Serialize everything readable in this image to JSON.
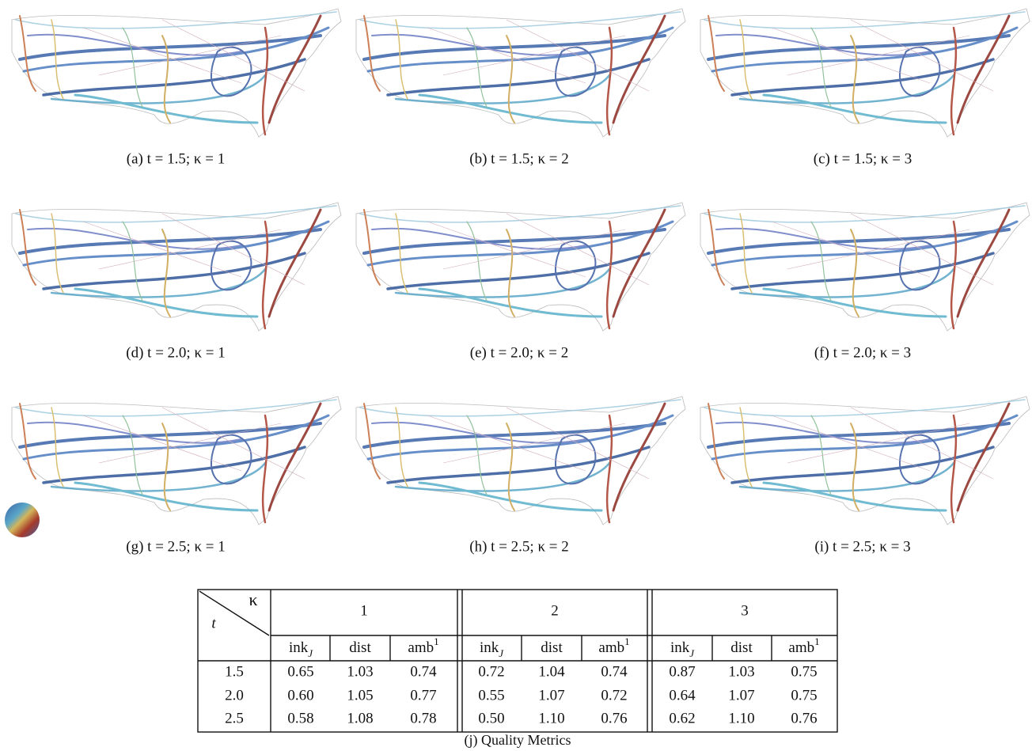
{
  "panels": [
    {
      "caption": "(a) t = 1.5; κ = 1"
    },
    {
      "caption": "(b) t = 1.5; κ = 2"
    },
    {
      "caption": "(c) t = 1.5; κ = 3"
    },
    {
      "caption": "(d) t = 2.0; κ = 1"
    },
    {
      "caption": "(e) t = 2.0; κ = 2"
    },
    {
      "caption": "(f) t = 2.0; κ = 3"
    },
    {
      "caption": "(g) t = 2.5; κ = 1"
    },
    {
      "caption": "(h) t = 2.5; κ = 2"
    },
    {
      "caption": "(i) t = 2.5; κ = 3"
    }
  ],
  "table": {
    "corner_top": "κ",
    "corner_bottom": "t",
    "groups": [
      "1",
      "2",
      "3"
    ],
    "metrics": [
      {
        "base": "ink",
        "sub": "J"
      },
      {
        "base": "dist"
      },
      {
        "base": "amb",
        "sup": "1"
      }
    ],
    "rows": [
      [
        "1.5",
        "0.65",
        "1.03",
        "0.74",
        "0.72",
        "1.04",
        "0.74",
        "0.87",
        "1.03",
        "0.75"
      ],
      [
        "2.0",
        "0.60",
        "1.05",
        "0.77",
        "0.55",
        "1.07",
        "0.72",
        "0.64",
        "1.07",
        "0.75"
      ],
      [
        "2.5",
        "0.58",
        "1.08",
        "0.78",
        "0.50",
        "1.10",
        "0.76",
        "0.62",
        "1.10",
        "0.76"
      ]
    ],
    "caption": "(j) Quality Metrics"
  }
}
